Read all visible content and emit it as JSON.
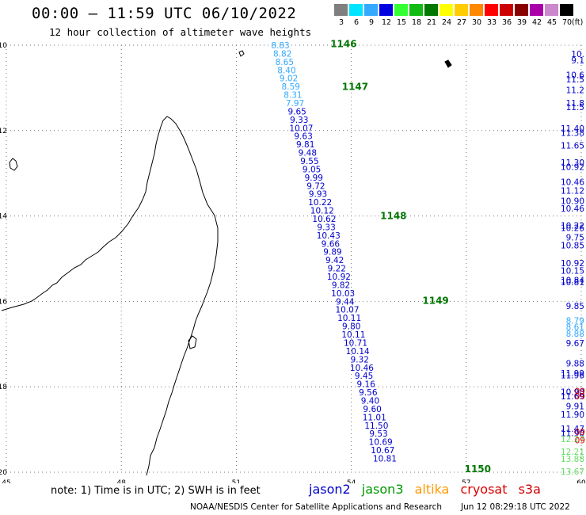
{
  "header": {
    "title": "00:00 – 11:59 UTC 06/10/2022",
    "subtitle": "12 hour collection of altimeter wave heights"
  },
  "colorbar": {
    "unit": "(ft)",
    "entries": [
      {
        "label": "3",
        "color": "#7f7f7f"
      },
      {
        "label": "6",
        "color": "#00e5ff"
      },
      {
        "label": "9",
        "color": "#33aaff"
      },
      {
        "label": "12",
        "color": "#0000e0"
      },
      {
        "label": "15",
        "color": "#33ff33"
      },
      {
        "label": "18",
        "color": "#11bb11"
      },
      {
        "label": "21",
        "color": "#007700"
      },
      {
        "label": "24",
        "color": "#ffff00"
      },
      {
        "label": "27",
        "color": "#ffcc00"
      },
      {
        "label": "30",
        "color": "#ff8800"
      },
      {
        "label": "33",
        "color": "#ff0000"
      },
      {
        "label": "36",
        "color": "#cc0000"
      },
      {
        "label": "39",
        "color": "#880000"
      },
      {
        "label": "42",
        "color": "#aa00aa"
      },
      {
        "label": "45",
        "color": "#cc88cc"
      },
      {
        "label": "70",
        "color": "#000000"
      }
    ]
  },
  "map": {
    "lon_range": [
      45,
      60
    ],
    "lat_range": [
      -20,
      -10
    ],
    "lon_ticks": [
      "45",
      "48",
      "51",
      "54",
      "57",
      "60"
    ],
    "lat_ticks": [
      "-10",
      "-12",
      "-14",
      "-16",
      "-18",
      "-20"
    ],
    "passes": [
      {
        "label": "1146",
        "lon": 53.8,
        "lat": -9.97
      },
      {
        "label": "1147",
        "lon": 54.1,
        "lat": -10.97
      },
      {
        "label": "1148",
        "lon": 55.1,
        "lat": -14.0
      },
      {
        "label": "1149",
        "lon": 56.2,
        "lat": -15.98
      },
      {
        "label": "1150",
        "lon": 57.3,
        "lat": -19.93
      }
    ],
    "track_main": {
      "lat_start": -10.0,
      "lat_step": -0.1935,
      "lon_start": 52.15,
      "lon_step": 0.0545,
      "colors": {
        "light": "#33aaff",
        "dark": "#0000cc"
      },
      "light_count": 8,
      "values": [
        "8.83",
        "8.82",
        "8.65",
        "8.40",
        "9.02",
        "8.59",
        "8.31",
        "7.97",
        "9.65",
        "9.33",
        "10.07",
        "9.63",
        "9.81",
        "9.48",
        "9.55",
        "9.05",
        "9.99",
        "9.72",
        "9.93",
        "10.22",
        "10.12",
        "10.62",
        "9.33",
        "10.43",
        "9.66",
        "9.89",
        "9.42",
        "9.22",
        "10.92",
        "9.82",
        "10.03",
        "9.44",
        "10.07",
        "10.11",
        "9.80",
        "10.11",
        "10.71",
        "10.14",
        "9.32",
        "10.46",
        "9.45",
        "9.16",
        "9.56",
        "9.40",
        "9.60",
        "11.01",
        "11.50",
        "9.53",
        "10.69",
        "10.67",
        "10.81"
      ]
    },
    "track_right": [
      {
        "v": "10.",
        "lat": -10.2,
        "c": "#0000cc"
      },
      {
        "v": "9.1",
        "lat": -10.35,
        "c": "#0000cc"
      },
      {
        "v": "10.6",
        "lat": -10.7,
        "c": "#0000cc"
      },
      {
        "v": "11.5",
        "lat": -10.8,
        "c": "#0000cc"
      },
      {
        "v": "11.2",
        "lat": -11.05,
        "c": "#0000cc"
      },
      {
        "v": "11.8",
        "lat": -11.35,
        "c": "#0000cc"
      },
      {
        "v": "11.5",
        "lat": -11.45,
        "c": "#0000cc"
      },
      {
        "v": "11.40",
        "lat": -11.95,
        "c": "#0000cc"
      },
      {
        "v": "11.38",
        "lat": -12.05,
        "c": "#0000cc"
      },
      {
        "v": "11.65",
        "lat": -12.35,
        "c": "#0000cc"
      },
      {
        "v": "11.30",
        "lat": -12.75,
        "c": "#0000cc"
      },
      {
        "v": "10.92",
        "lat": -12.85,
        "c": "#0000cc"
      },
      {
        "v": "10.46",
        "lat": -13.2,
        "c": "#0000cc"
      },
      {
        "v": "11.12",
        "lat": -13.4,
        "c": "#0000cc"
      },
      {
        "v": "10.90",
        "lat": -13.65,
        "c": "#0000cc"
      },
      {
        "v": "10.46",
        "lat": -13.82,
        "c": "#0000cc"
      },
      {
        "v": "10.22",
        "lat": -14.22,
        "c": "#0000cc"
      },
      {
        "v": "10.26",
        "lat": -14.28,
        "c": "#0000cc"
      },
      {
        "v": "9.75",
        "lat": -14.5,
        "c": "#0000cc"
      },
      {
        "v": "10.85",
        "lat": -14.68,
        "c": "#0000cc"
      },
      {
        "v": "10.92",
        "lat": -15.1,
        "c": "#0000cc"
      },
      {
        "v": "10.15",
        "lat": -15.28,
        "c": "#0000cc"
      },
      {
        "v": "10.84",
        "lat": -15.5,
        "c": "#0000cc"
      },
      {
        "v": "10.81",
        "lat": -15.55,
        "c": "#0000cc"
      },
      {
        "v": "9.85",
        "lat": -16.1,
        "c": "#0000cc"
      },
      {
        "v": "8.79",
        "lat": -16.45,
        "c": "#33aaff"
      },
      {
        "v": "8.61",
        "lat": -16.6,
        "c": "#33aaff"
      },
      {
        "v": "8.88",
        "lat": -16.75,
        "c": "#33aaff"
      },
      {
        "v": "9.67",
        "lat": -16.98,
        "c": "#0000cc"
      },
      {
        "v": "9.88",
        "lat": -17.45,
        "c": "#0000cc"
      },
      {
        "v": "11.99",
        "lat": -17.68,
        "c": "#0000cc"
      },
      {
        "v": "11.96",
        "lat": -17.73,
        "c": "#0000cc"
      },
      {
        "v": "10.98",
        "lat": -18.12,
        "c": "#0000cc"
      },
      {
        "v": "11.69",
        "lat": -18.22,
        "c": "#0000cc"
      },
      {
        "v": "9.91",
        "lat": -18.45,
        "c": "#0000cc"
      },
      {
        "v": "11.90",
        "lat": -18.65,
        "c": "#0000cc"
      },
      {
        "v": "11.47",
        "lat": -18.98,
        "c": "#0000cc"
      },
      {
        "v": "11.90",
        "lat": -19.08,
        "c": "#0000cc"
      },
      {
        "v": "12.27",
        "lat": -19.22,
        "c": "#66dd66"
      },
      {
        "v": "12.21",
        "lat": -19.52,
        "c": "#66dd66"
      },
      {
        "v": "13.88",
        "lat": -19.68,
        "c": "#66dd66"
      },
      {
        "v": "13.67",
        "lat": -19.98,
        "c": "#66dd66"
      }
    ],
    "track_red": [
      {
        "v": "09",
        "lat": -18.1
      },
      {
        "v": "09",
        "lat": -18.22
      },
      {
        "v": "09",
        "lat": -19.05
      },
      {
        "v": "09",
        "lat": -19.25
      }
    ]
  },
  "footer": {
    "note": "note: 1) Time is in UTC; 2) SWH is in feet",
    "satellites": [
      {
        "name": "jason2",
        "color": "#0000cc"
      },
      {
        "name": "jason3",
        "color": "#009900"
      },
      {
        "name": "altika",
        "color": "#ff9900"
      },
      {
        "name": "cryosat",
        "color": "#dd0000"
      },
      {
        "name": "s3a",
        "color": "#cc0000"
      }
    ],
    "credit": "NOAA/NESDIS Center for Satellite Applications and Research",
    "timestamp": "Jun 12 08:29:18 UTC 2022"
  }
}
